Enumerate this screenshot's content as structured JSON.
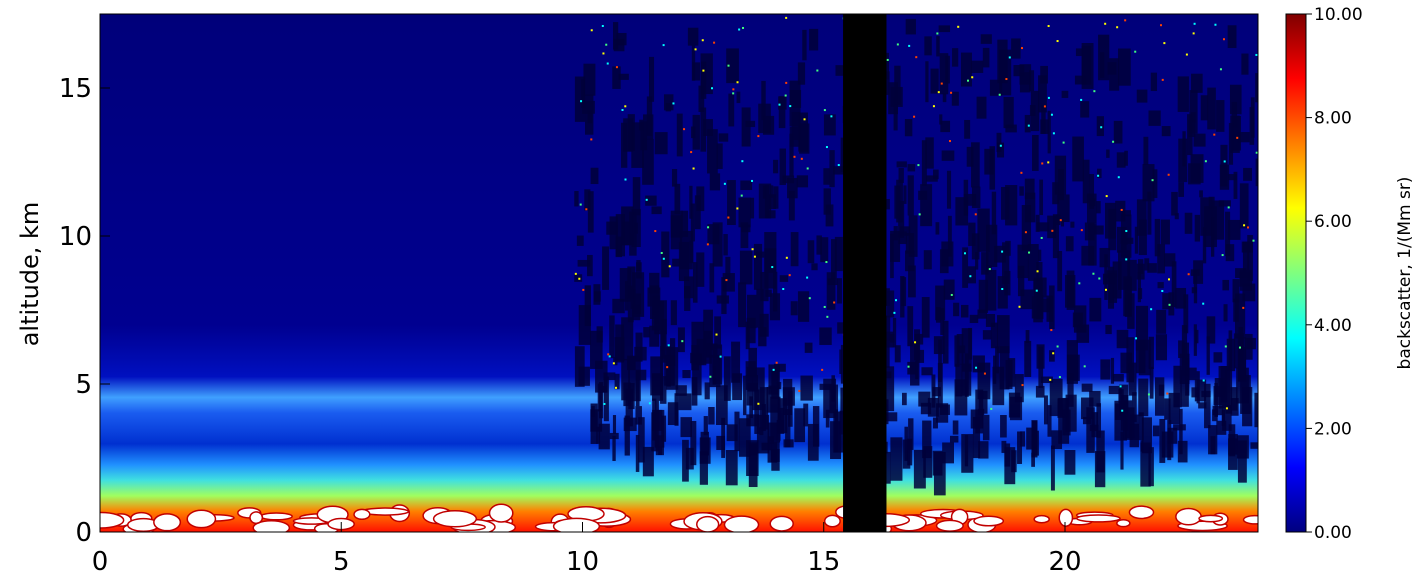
{
  "chart_data": {
    "type": "heatmap",
    "title": "",
    "xlabel": "",
    "ylabel": "altitude, km",
    "xlim": [
      0,
      24
    ],
    "ylim": [
      0,
      17.5
    ],
    "x_ticks": [
      0,
      5,
      10,
      15,
      20
    ],
    "x_tick_labels": [
      "0",
      "5",
      "10",
      "15",
      "20"
    ],
    "y_ticks": [
      0,
      5,
      10,
      15
    ],
    "y_tick_labels": [
      "0",
      "5",
      "10",
      "15"
    ],
    "colorbar": {
      "label": "backscatter, 1/(Mm sr)",
      "range": [
        0,
        10
      ],
      "ticks": [
        0,
        2,
        4,
        6,
        8,
        10
      ],
      "tick_labels": [
        "0.00",
        "2.00",
        "4.00",
        "6.00",
        "8.00",
        "10.00"
      ],
      "colormap": "jet",
      "colors": [
        "#00007f",
        "#0000ff",
        "#00ffff",
        "#ffff00",
        "#ff0000",
        "#7f0000"
      ],
      "overflow_color": "#ffffff"
    },
    "no_data_color": "#000000",
    "no_data_intervals": [
      [
        15.4,
        16.3
      ]
    ],
    "features": [
      {
        "name": "boundary layer",
        "x_range": [
          0,
          24
        ],
        "alt_range": [
          0,
          2
        ],
        "value_range": [
          6,
          10
        ]
      },
      {
        "name": "elevated aerosol layer",
        "x_range": [
          0,
          24
        ],
        "alt_range": [
          2.5,
          5
        ],
        "value_range": [
          2,
          4
        ]
      },
      {
        "name": "clear sky",
        "x_range": [
          0,
          24
        ],
        "alt_range": [
          5,
          17.5
        ],
        "value_range": [
          0,
          0.5
        ]
      },
      {
        "name": "noise region",
        "x_range": [
          9.8,
          24
        ],
        "alt_range": [
          2,
          17.5
        ]
      }
    ]
  }
}
